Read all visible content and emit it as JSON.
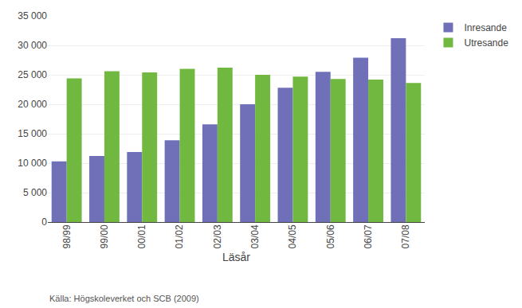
{
  "chart_data": {
    "type": "bar",
    "categories": [
      "98/99",
      "99/00",
      "00/01",
      "01/02",
      "02/03",
      "03/04",
      "04/05",
      "05/06",
      "06/07",
      "07/08"
    ],
    "series": [
      {
        "name": "Inresande",
        "color": "#7070b8",
        "values": [
          10300,
          11200,
          11900,
          13900,
          16600,
          20000,
          22800,
          25500,
          27900,
          31200
        ]
      },
      {
        "name": "Utresande",
        "color": "#70b840",
        "values": [
          24400,
          25600,
          25400,
          26000,
          26200,
          25000,
          24700,
          24300,
          24200,
          23600
        ]
      }
    ],
    "xlabel": "Läsår",
    "ylim": [
      0,
      35000
    ],
    "yticks": [
      0,
      {
        "value": 5000,
        "label": "5 000"
      },
      {
        "value": 10000,
        "label": "10 000"
      },
      {
        "value": 15000,
        "label": "15 000"
      },
      {
        "value": 20000,
        "label": "20 000"
      },
      {
        "value": 25000,
        "label": "25 000"
      },
      {
        "value": 30000,
        "label": "30 000"
      },
      {
        "value": 35000,
        "label": "35 000"
      }
    ],
    "grid": true,
    "legend": "upper right",
    "annotations": [
      "Källa: Högskoleverket och SCB (2009)"
    ]
  }
}
